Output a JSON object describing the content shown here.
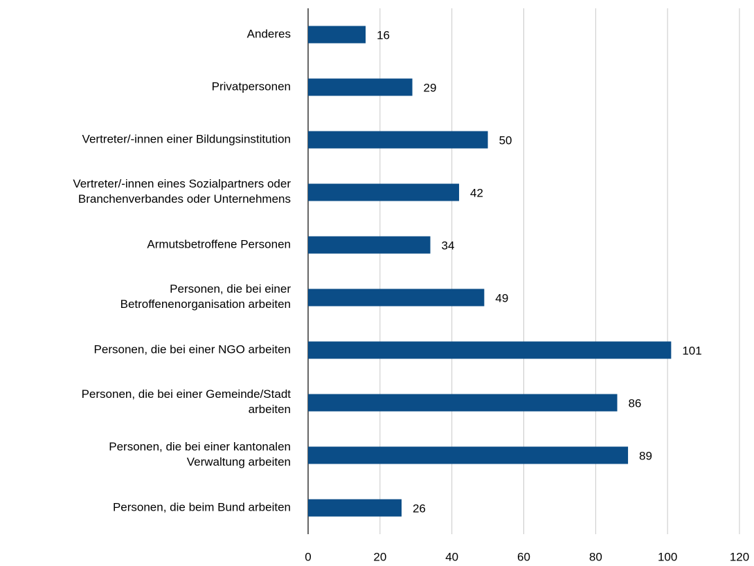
{
  "chart_data": {
    "type": "hbar",
    "categories": [
      "Anderes",
      "Privatpersonen",
      "Vertreter/-innen einer Bildungsinstitution",
      "Vertreter/-innen eines Sozialpartners oder\nBranchenverbandes oder Unternehmens",
      "Armutsbetroffene Personen",
      "Personen, die bei einer\nBetroffenenorganisation arbeiten",
      "Personen, die bei einer NGO arbeiten",
      "Personen, die bei einer Gemeinde/Stadt\narbeiten",
      "Personen, die bei einer kantonalen\nVerwaltung arbeiten",
      "Personen, die beim Bund arbeiten"
    ],
    "values": [
      16,
      29,
      50,
      42,
      34,
      49,
      101,
      86,
      89,
      26
    ],
    "color": "#0b4d87",
    "xlim": [
      0,
      120
    ],
    "xticks": [
      0,
      20,
      40,
      60,
      80,
      100,
      120
    ],
    "grid": true
  }
}
